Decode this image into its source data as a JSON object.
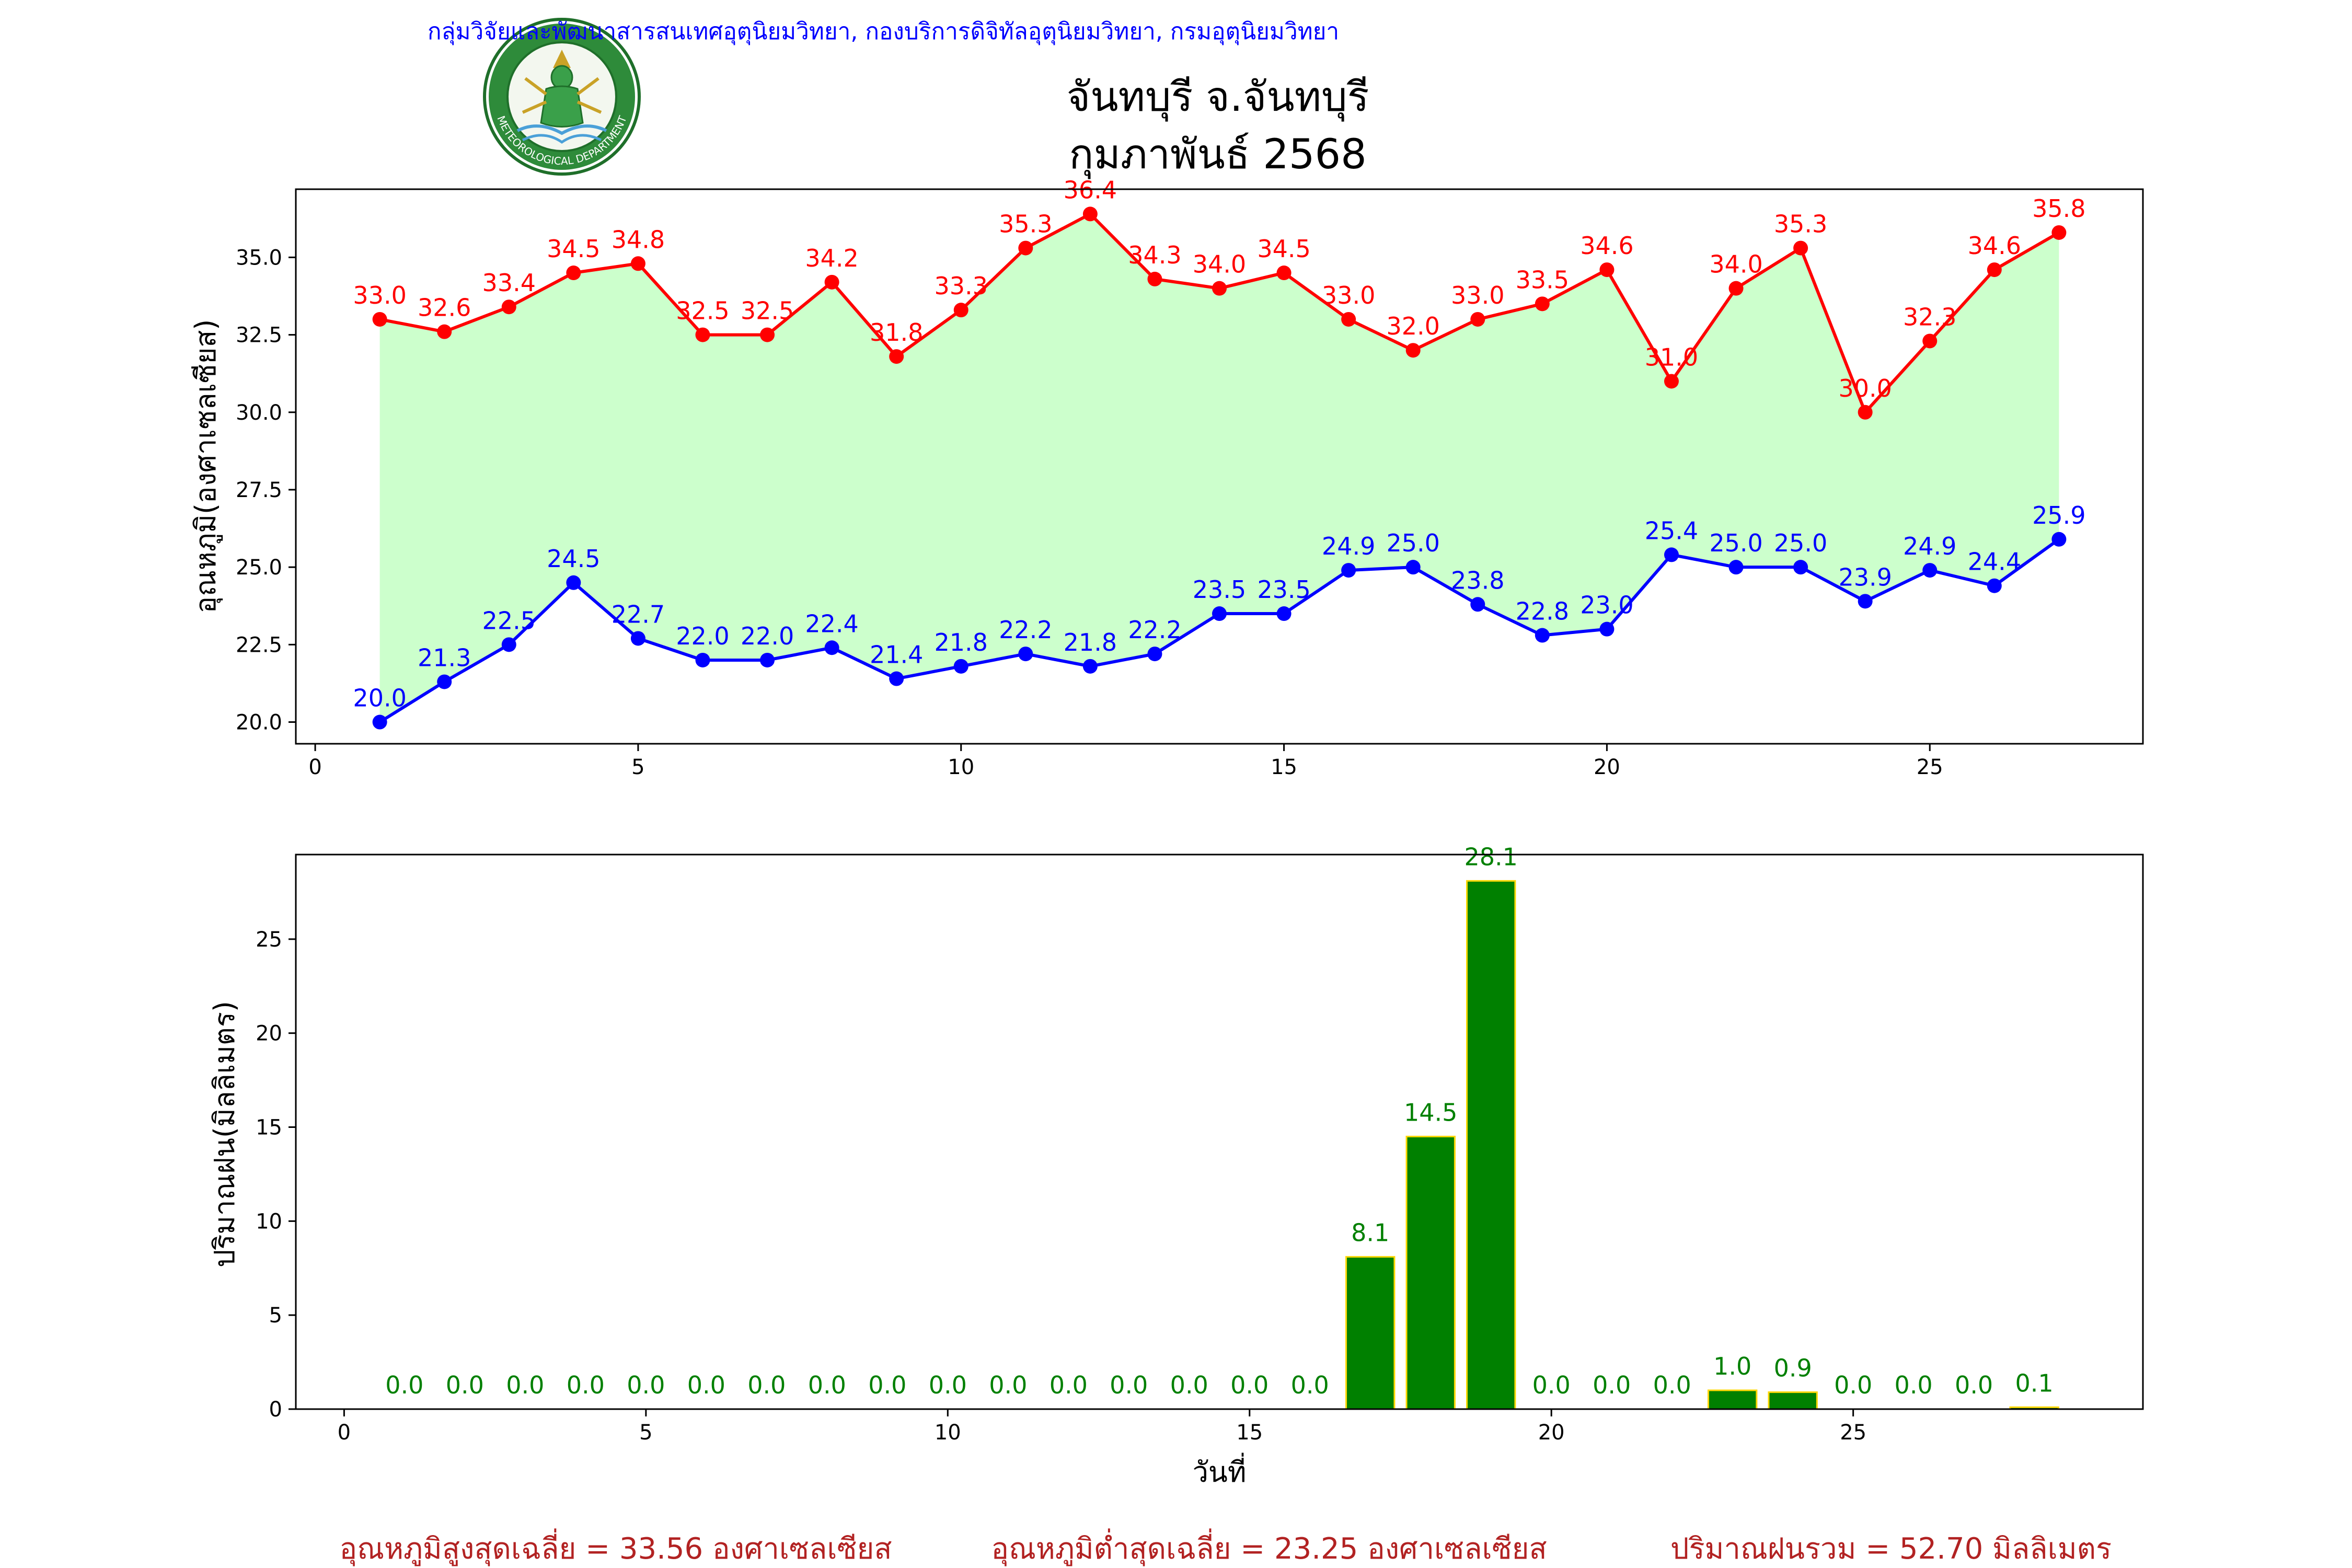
{
  "header": {
    "agency_line": "กลุ่มวิจัยและพัฒนาสารสนเทศอุตุนิยมวิทยา, กองบริการดิจิทัลอุตุนิยมวิทยา, กรมอุตุนิยมวิทยา",
    "logo": {
      "name": "meteorological-department-seal",
      "top_text": "กรมอุตุนิยมวิทยา",
      "bottom_text": "METEOROLOGICAL DEPARTMENT"
    },
    "station": "จันทบุรี จ.จันทบุรี",
    "period": "กุมภาพันธ์ 2568"
  },
  "colors": {
    "max_temp": "#ff0000",
    "min_temp": "#0000ff",
    "temp_range_fill": "#ccffcc",
    "rain_bar": "#008000",
    "rain_edge": "#ffd700",
    "footer_text": "#b22222"
  },
  "chart_data": [
    {
      "type": "line",
      "ylabel": "อุณหภูมิ(องศาเซลเซียส)",
      "xlim": [
        -0.3,
        28.3
      ],
      "ylim": [
        19.3,
        37.2
      ],
      "xticks": [
        0,
        5,
        10,
        15,
        20,
        25
      ],
      "yticks": [
        20.0,
        22.5,
        25.0,
        27.5,
        30.0,
        32.5,
        35.0
      ],
      "grid": false,
      "x": [
        1,
        2,
        3,
        4,
        5,
        6,
        7,
        8,
        9,
        10,
        11,
        12,
        13,
        14,
        15,
        16,
        17,
        18,
        19,
        20,
        21,
        22,
        23,
        24,
        25,
        26,
        27
      ],
      "series": [
        {
          "key": "max",
          "values": [
            33.0,
            32.6,
            33.4,
            34.5,
            34.8,
            32.5,
            32.5,
            34.2,
            31.8,
            33.3,
            35.3,
            36.4,
            34.3,
            34.0,
            34.5,
            33.0,
            32.0,
            33.0,
            33.5,
            34.6,
            31.0,
            34.0,
            35.3,
            30.0,
            32.3,
            34.6,
            35.8
          ]
        },
        {
          "key": "min",
          "values": [
            20.0,
            21.3,
            22.5,
            24.5,
            22.7,
            22.0,
            22.0,
            22.4,
            21.4,
            21.8,
            22.2,
            21.8,
            22.2,
            23.5,
            23.5,
            24.9,
            25.0,
            23.8,
            22.8,
            23.0,
            25.4,
            25.0,
            25.0,
            23.9,
            24.9,
            24.4,
            25.9
          ]
        }
      ]
    },
    {
      "type": "bar",
      "xlabel": "วันที่",
      "ylabel": "ปริมาณฝน(มิลลิเมตร)",
      "xlim": [
        -0.8,
        29.8
      ],
      "ylim": [
        0,
        29.5
      ],
      "xticks": [
        0,
        5,
        10,
        15,
        20,
        25
      ],
      "yticks": [
        0,
        5,
        10,
        15,
        20,
        25
      ],
      "grid": false,
      "x": [
        1,
        2,
        3,
        4,
        5,
        6,
        7,
        8,
        9,
        10,
        11,
        12,
        13,
        14,
        15,
        16,
        17,
        18,
        19,
        20,
        21,
        22,
        23,
        24,
        25,
        26,
        27,
        28
      ],
      "values": [
        0.0,
        0.0,
        0.0,
        0.0,
        0.0,
        0.0,
        0.0,
        0.0,
        0.0,
        0.0,
        0.0,
        0.0,
        0.0,
        0.0,
        0.0,
        0.0,
        8.1,
        14.5,
        28.1,
        0.0,
        0.0,
        0.0,
        1.0,
        0.9,
        0.0,
        0.0,
        0.0,
        0.1
      ]
    }
  ],
  "footer": {
    "avg_max": "อุณหภูมิสูงสุดเฉลี่ย = 33.56 องศาเซลเซียส",
    "avg_min": "อุณหภูมิต่ำสุดเฉลี่ย = 23.25 องศาเซลเซียส",
    "total_rain": "ปริมาณฝนรวม = 52.70 มิลลิเมตร"
  }
}
